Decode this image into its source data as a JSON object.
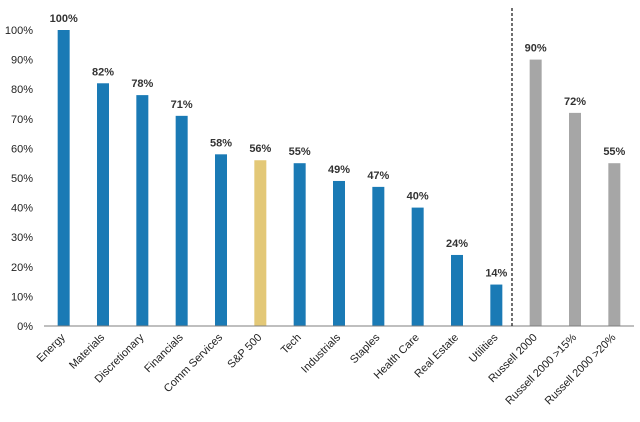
{
  "chart_data": {
    "type": "bar",
    "title": "",
    "xlabel": "",
    "ylabel": "",
    "ylim": [
      0,
      100
    ],
    "yticks": [
      0,
      10,
      20,
      30,
      40,
      50,
      60,
      70,
      80,
      90,
      100
    ],
    "ytick_labels": [
      "0%",
      "10%",
      "20%",
      "30%",
      "40%",
      "50%",
      "60%",
      "70%",
      "80%",
      "90%",
      "100%"
    ],
    "grid": false,
    "divider_after_category": "Utilities",
    "categories": [
      "Energy",
      "Materials",
      "Discretionary",
      "Financials",
      "Comm Services",
      "S&P 500",
      "Tech",
      "Industrials",
      "Staples",
      "Health Care",
      "Real Estate",
      "Utilities",
      "Russell 2000",
      "Russell 2000 >15%",
      "Russell 2000 >20%"
    ],
    "values": [
      100,
      82,
      78,
      71,
      58,
      56,
      55,
      49,
      47,
      40,
      24,
      14,
      90,
      72,
      55
    ],
    "value_labels": [
      "100%",
      "82%",
      "78%",
      "71%",
      "58%",
      "56%",
      "55%",
      "49%",
      "47%",
      "40%",
      "24%",
      "14%",
      "90%",
      "72%",
      "55%"
    ],
    "colors": [
      "#1a7ab5",
      "#1a7ab5",
      "#1a7ab5",
      "#1a7ab5",
      "#1a7ab5",
      "#e3c877",
      "#1a7ab5",
      "#1a7ab5",
      "#1a7ab5",
      "#1a7ab5",
      "#1a7ab5",
      "#1a7ab5",
      "#a6a6a6",
      "#a6a6a6",
      "#a6a6a6"
    ]
  }
}
